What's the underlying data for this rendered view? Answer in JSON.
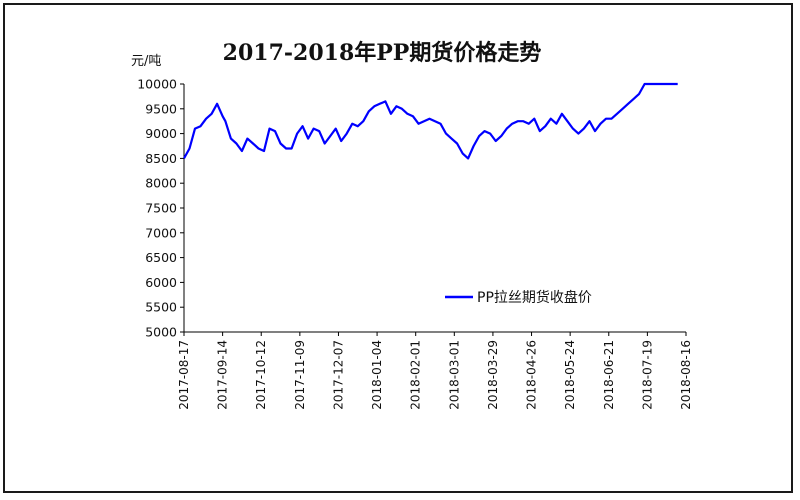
{
  "chart_data": {
    "type": "line",
    "title": "2017-2018年PP期货价格走势",
    "ylabel": "元/吨",
    "xlabel": "",
    "ylim": [
      5000,
      10000
    ],
    "y_ticks": [
      5000,
      5500,
      6000,
      6500,
      7000,
      7500,
      8000,
      8500,
      9000,
      9500,
      10000
    ],
    "x_tick_labels": [
      "2017-08-17",
      "2017-09-14",
      "2017-10-12",
      "2017-11-09",
      "2017-12-07",
      "2018-01-04",
      "2018-02-01",
      "2018-03-01",
      "2018-03-29",
      "2018-04-26",
      "2018-05-24",
      "2018-06-21",
      "2018-07-19",
      "2018-08-16"
    ],
    "legend_position": "right",
    "grid": false,
    "series": [
      {
        "name": "PP拉丝期货收盘价",
        "color": "#0000ff",
        "x": [
          "2017-08-17",
          "2017-08-21",
          "2017-08-25",
          "2017-08-29",
          "2017-09-02",
          "2017-09-06",
          "2017-09-10",
          "2017-09-14",
          "2017-09-16",
          "2017-09-20",
          "2017-09-24",
          "2017-09-28",
          "2017-10-02",
          "2017-10-06",
          "2017-10-10",
          "2017-10-14",
          "2017-10-18",
          "2017-10-22",
          "2017-10-26",
          "2017-10-30",
          "2017-11-03",
          "2017-11-07",
          "2017-11-11",
          "2017-11-15",
          "2017-11-19",
          "2017-11-23",
          "2017-11-27",
          "2017-12-01",
          "2017-12-05",
          "2017-12-09",
          "2017-12-13",
          "2017-12-17",
          "2017-12-21",
          "2017-12-25",
          "2017-12-29",
          "2018-01-02",
          "2018-01-06",
          "2018-01-10",
          "2018-01-14",
          "2018-01-18",
          "2018-01-22",
          "2018-01-26",
          "2018-01-30",
          "2018-02-03",
          "2018-02-07",
          "2018-02-11",
          "2018-02-15",
          "2018-02-19",
          "2018-02-23",
          "2018-02-27",
          "2018-03-03",
          "2018-03-07",
          "2018-03-11",
          "2018-03-15",
          "2018-03-19",
          "2018-03-23",
          "2018-03-27",
          "2018-03-31",
          "2018-04-04",
          "2018-04-08",
          "2018-04-12",
          "2018-04-16",
          "2018-04-20",
          "2018-04-24",
          "2018-04-28",
          "2018-05-02",
          "2018-05-06",
          "2018-05-10",
          "2018-05-14",
          "2018-05-18",
          "2018-05-22",
          "2018-05-26",
          "2018-05-30",
          "2018-06-03",
          "2018-06-07",
          "2018-06-11",
          "2018-06-15",
          "2018-06-19",
          "2018-06-23",
          "2018-06-27",
          "2018-07-01",
          "2018-07-05",
          "2018-07-09",
          "2018-07-13",
          "2018-07-17",
          "2018-07-21",
          "2018-07-25",
          "2018-07-29",
          "2018-08-02",
          "2018-08-06",
          "2018-08-10"
        ],
        "values": [
          8500,
          8700,
          9100,
          9150,
          9300,
          9400,
          9600,
          9350,
          9250,
          8900,
          8800,
          8650,
          8900,
          8800,
          8700,
          8650,
          9100,
          9050,
          8800,
          8700,
          8700,
          9000,
          9150,
          8900,
          9100,
          9050,
          8800,
          8950,
          9100,
          8850,
          9000,
          9200,
          9150,
          9250,
          9450,
          9550,
          9600,
          9650,
          9400,
          9550,
          9500,
          9400,
          9350,
          9200,
          9250,
          9300,
          9250,
          9200,
          9000,
          8900,
          8800,
          8600,
          8500,
          8750,
          8950,
          9050,
          9000,
          8850,
          8950,
          9100,
          9200,
          9250,
          9250,
          9200,
          9300,
          9050,
          9150,
          9300,
          9200,
          9400,
          9250,
          9100,
          9000,
          9100,
          9250,
          9050,
          9200,
          9300,
          9300,
          9400,
          9500,
          9600,
          9700,
          9800,
          10000,
          10000,
          10000,
          10000,
          10000,
          10000,
          10000
        ]
      }
    ]
  }
}
